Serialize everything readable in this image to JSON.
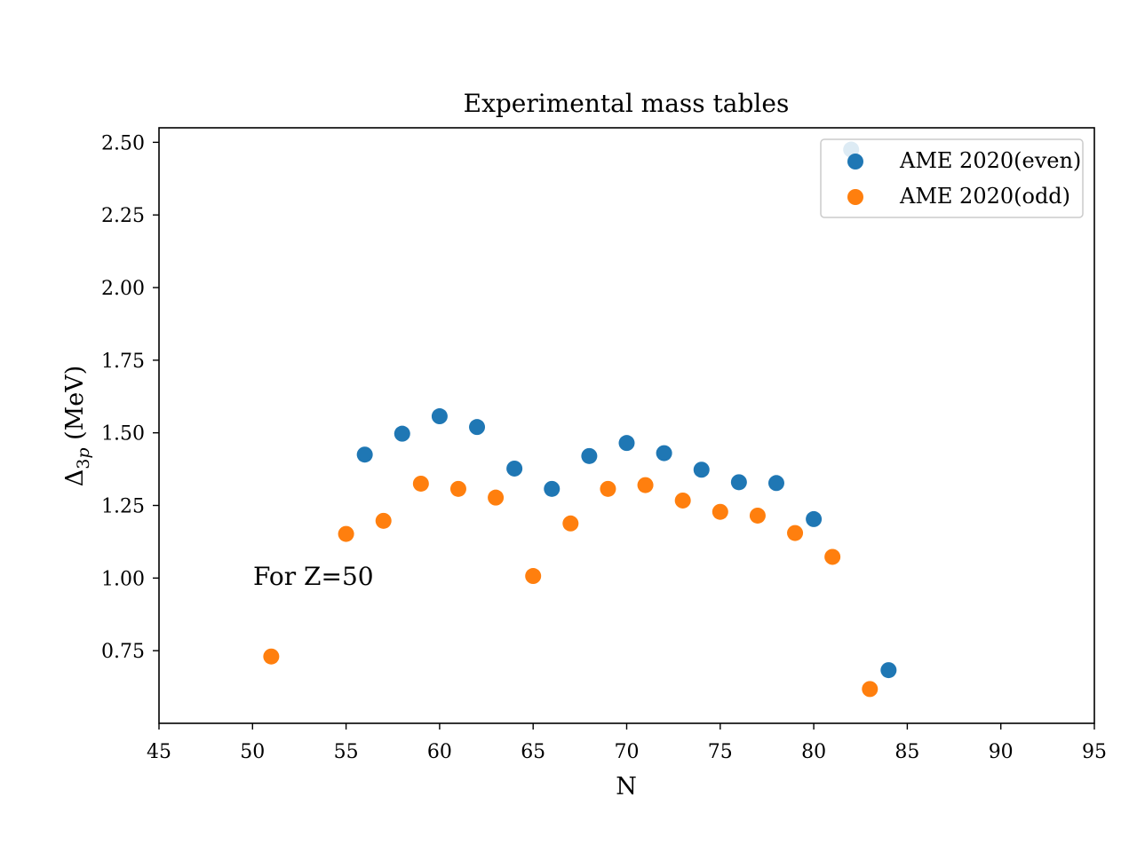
{
  "chart_data": {
    "type": "scatter",
    "title": "Experimental mass tables",
    "xlabel": "N",
    "ylabel": "Δ₃ₚ (MeV)",
    "xlim": [
      45,
      95
    ],
    "ylim": [
      0.5,
      2.55
    ],
    "xticks": [
      45,
      50,
      55,
      60,
      65,
      70,
      75,
      80,
      85,
      90,
      95
    ],
    "yticks": [
      0.75,
      1.0,
      1.25,
      1.5,
      1.75,
      2.0,
      2.25,
      2.5
    ],
    "yticklabels": [
      "0.75",
      "1.00",
      "1.25",
      "1.50",
      "1.75",
      "2.00",
      "2.25",
      "2.50"
    ],
    "grid": false,
    "legend_position": "top-right",
    "annotation": {
      "text": "For Z=50",
      "x": 50,
      "y": 1.03
    },
    "series": [
      {
        "name": "AME 2020(even)",
        "color": "#1f77b4",
        "points": [
          {
            "x": 56,
            "y": 1.425
          },
          {
            "x": 58,
            "y": 1.497
          },
          {
            "x": 60,
            "y": 1.557
          },
          {
            "x": 62,
            "y": 1.52
          },
          {
            "x": 64,
            "y": 1.377
          },
          {
            "x": 66,
            "y": 1.307
          },
          {
            "x": 68,
            "y": 1.42
          },
          {
            "x": 70,
            "y": 1.465
          },
          {
            "x": 72,
            "y": 1.43
          },
          {
            "x": 74,
            "y": 1.373
          },
          {
            "x": 76,
            "y": 1.33
          },
          {
            "x": 78,
            "y": 1.327
          },
          {
            "x": 80,
            "y": 1.203
          },
          {
            "x": 82,
            "y": 2.475
          },
          {
            "x": 84,
            "y": 0.683
          }
        ]
      },
      {
        "name": "AME 2020(odd)",
        "color": "#ff7f0e",
        "points": [
          {
            "x": 51,
            "y": 0.73
          },
          {
            "x": 55,
            "y": 1.152
          },
          {
            "x": 57,
            "y": 1.197
          },
          {
            "x": 59,
            "y": 1.325
          },
          {
            "x": 61,
            "y": 1.307
          },
          {
            "x": 63,
            "y": 1.277
          },
          {
            "x": 65,
            "y": 1.007
          },
          {
            "x": 67,
            "y": 1.188
          },
          {
            "x": 69,
            "y": 1.307
          },
          {
            "x": 71,
            "y": 1.32
          },
          {
            "x": 73,
            "y": 1.267
          },
          {
            "x": 75,
            "y": 1.228
          },
          {
            "x": 77,
            "y": 1.215
          },
          {
            "x": 79,
            "y": 1.155
          },
          {
            "x": 81,
            "y": 1.073
          },
          {
            "x": 83,
            "y": 0.618
          }
        ]
      }
    ]
  }
}
